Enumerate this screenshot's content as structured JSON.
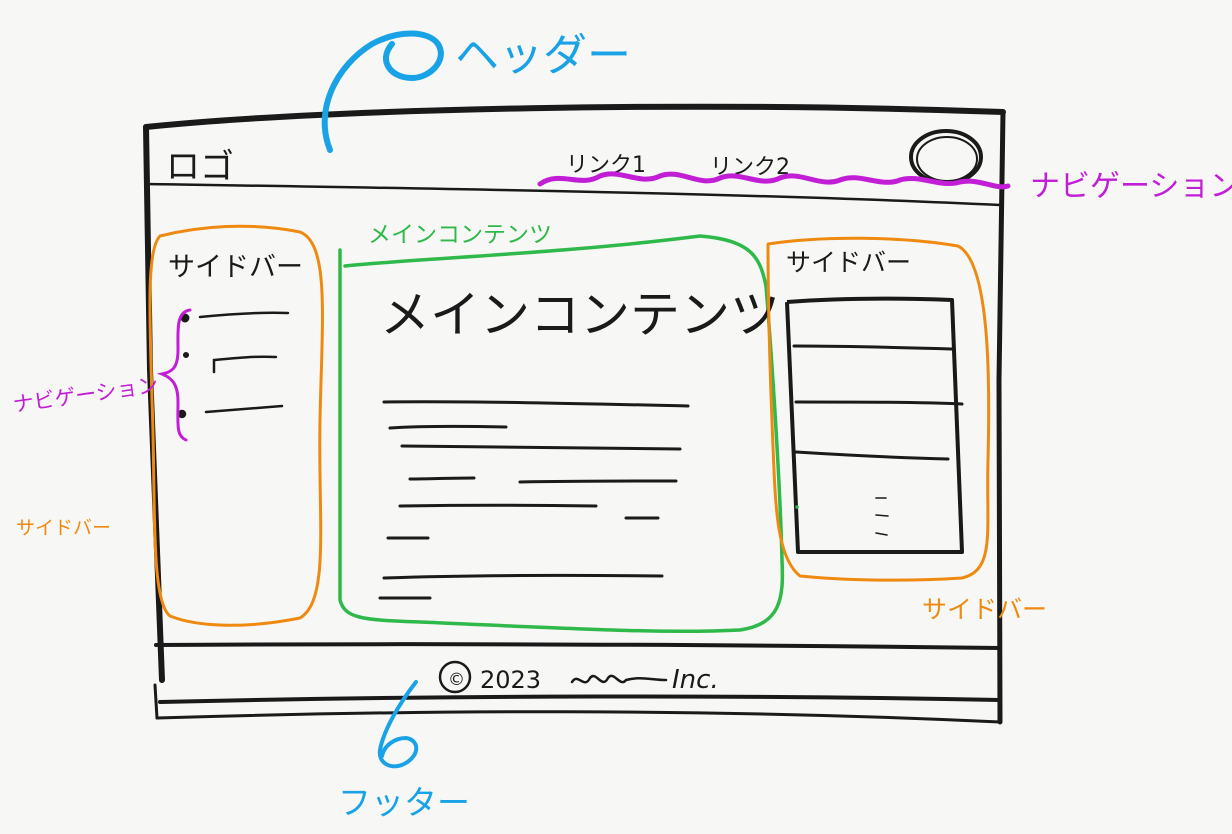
{
  "colors": {
    "ink": "#1a1a1a",
    "header_annotation": "#19a3e6",
    "navigation_annotation": "#c21ed6",
    "sidebar_annotation": "#ee8a12",
    "main_annotation": "#2fb94a"
  },
  "header": {
    "logo": "ロゴ",
    "links": [
      "リンク1",
      "リンク2"
    ],
    "avatar_icon": "circle-icon"
  },
  "left_sidebar": {
    "title": "サイドバー",
    "nav_items": 3
  },
  "main": {
    "annotation": "メインコンテンツ",
    "title": "メインコンテンツ"
  },
  "right_sidebar": {
    "title": "サイドバー",
    "list_rows": 5
  },
  "footer": {
    "copyright_symbol": "©",
    "year": "2023",
    "company": "Inc."
  },
  "annotations": {
    "header": "ヘッダー",
    "navigation_top": "ナビゲーション",
    "navigation_left": "ナビゲーション",
    "sidebar_left": "サイドバー",
    "sidebar_right": "サイドバー",
    "footer": "フッター"
  }
}
